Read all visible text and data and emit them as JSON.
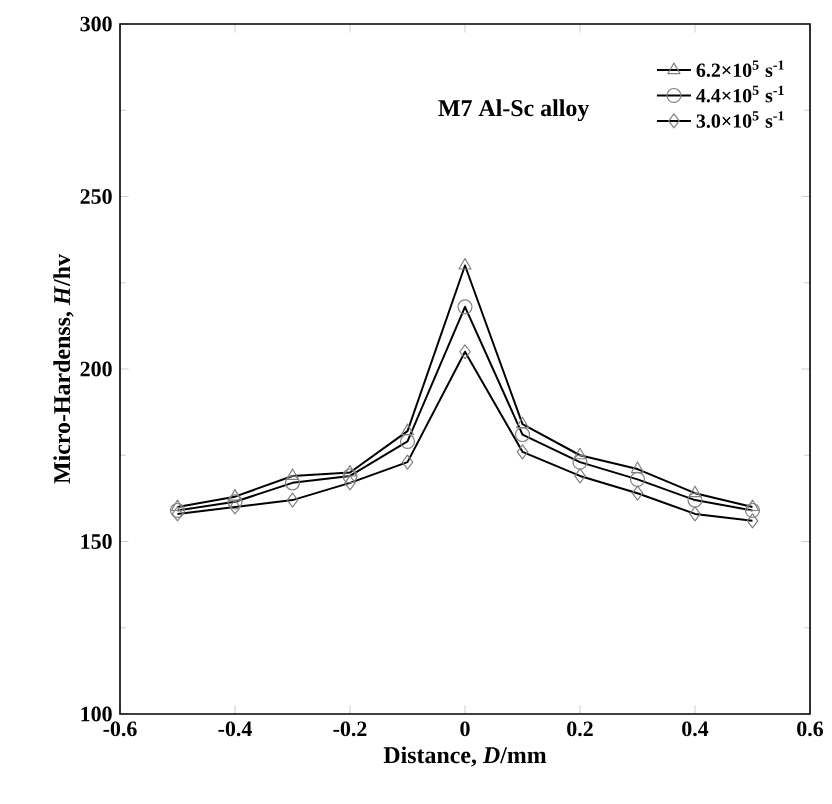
{
  "chart_data": {
    "type": "line",
    "xlabel": "Distance, *D*/mm",
    "ylabel": "Micro-Hardenss, *H*/hv",
    "x": [
      -0.5,
      -0.4,
      -0.3,
      -0.2,
      -0.1,
      0,
      0.1,
      0.2,
      0.3,
      0.4,
      0.5
    ],
    "series": [
      {
        "name": "6.2×10$^{5}$ s$^{-1}$",
        "color": "#000000",
        "marker": "triangle",
        "values": [
          160,
          163,
          169,
          170,
          182,
          230,
          184,
          175,
          171,
          164,
          160
        ]
      },
      {
        "name": "4.4×10$^{5}$ s$^{-1}$",
        "color": "#000000",
        "marker": "circle",
        "values": [
          159,
          161.5,
          167,
          169,
          179,
          218,
          181,
          173,
          168,
          162,
          159
        ]
      },
      {
        "name": "3.0×10$^{5}$ s$^{-1}$",
        "color": "#000000",
        "marker": "diamond",
        "values": [
          158,
          160,
          162,
          167,
          173,
          205,
          176,
          169,
          164,
          158,
          156
        ]
      }
    ],
    "xlim": [
      -0.6,
      0.6
    ],
    "ylim": [
      100,
      300
    ],
    "xticks": [
      -0.6,
      -0.4,
      -0.2,
      0,
      0.2,
      0.4,
      0.6
    ],
    "yticks": [
      100,
      150,
      200,
      250,
      300
    ],
    "annotations": [
      "M7 Al-Sc alloy"
    ],
    "legend": "top right",
    "grid": false,
    "line_style": "solid"
  }
}
